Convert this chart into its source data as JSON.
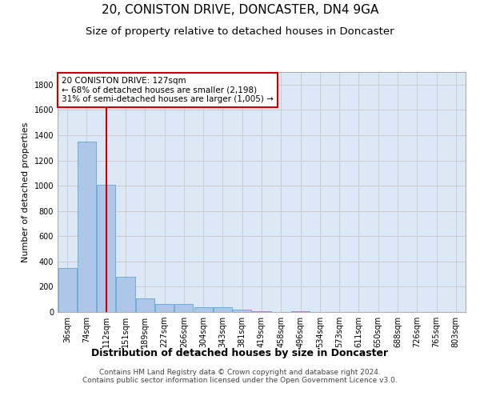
{
  "title": "20, CONISTON DRIVE, DONCASTER, DN4 9GA",
  "subtitle": "Size of property relative to detached houses in Doncaster",
  "xlabel": "Distribution of detached houses by size in Doncaster",
  "ylabel": "Number of detached properties",
  "categories": [
    "36sqm",
    "74sqm",
    "112sqm",
    "151sqm",
    "189sqm",
    "227sqm",
    "266sqm",
    "304sqm",
    "343sqm",
    "381sqm",
    "419sqm",
    "458sqm",
    "496sqm",
    "534sqm",
    "573sqm",
    "611sqm",
    "650sqm",
    "688sqm",
    "726sqm",
    "765sqm",
    "803sqm"
  ],
  "values": [
    350,
    1350,
    1010,
    280,
    110,
    62,
    62,
    40,
    40,
    22,
    5,
    0,
    5,
    0,
    0,
    0,
    0,
    0,
    0,
    0,
    0
  ],
  "bar_color": "#aec6e8",
  "bar_edge_color": "#6baed6",
  "red_line_x": 2.0,
  "annotation_line1": "20 CONISTON DRIVE: 127sqm",
  "annotation_line2": "← 68% of detached houses are smaller (2,198)",
  "annotation_line3": "31% of semi-detached houses are larger (1,005) →",
  "annotation_box_color": "#ffffff",
  "annotation_box_edge_color": "#cc0000",
  "ylim": [
    0,
    1900
  ],
  "yticks": [
    0,
    200,
    400,
    600,
    800,
    1000,
    1200,
    1400,
    1600,
    1800
  ],
  "grid_color": "#cccccc",
  "plot_bg_color": "#dce8f5",
  "background_color": "#ffffff",
  "footer_line1": "Contains HM Land Registry data © Crown copyright and database right 2024.",
  "footer_line2": "Contains public sector information licensed under the Open Government Licence v3.0.",
  "title_fontsize": 11,
  "subtitle_fontsize": 9.5,
  "xlabel_fontsize": 9,
  "ylabel_fontsize": 8,
  "tick_fontsize": 7,
  "annotation_fontsize": 7.5,
  "footer_fontsize": 6.5
}
